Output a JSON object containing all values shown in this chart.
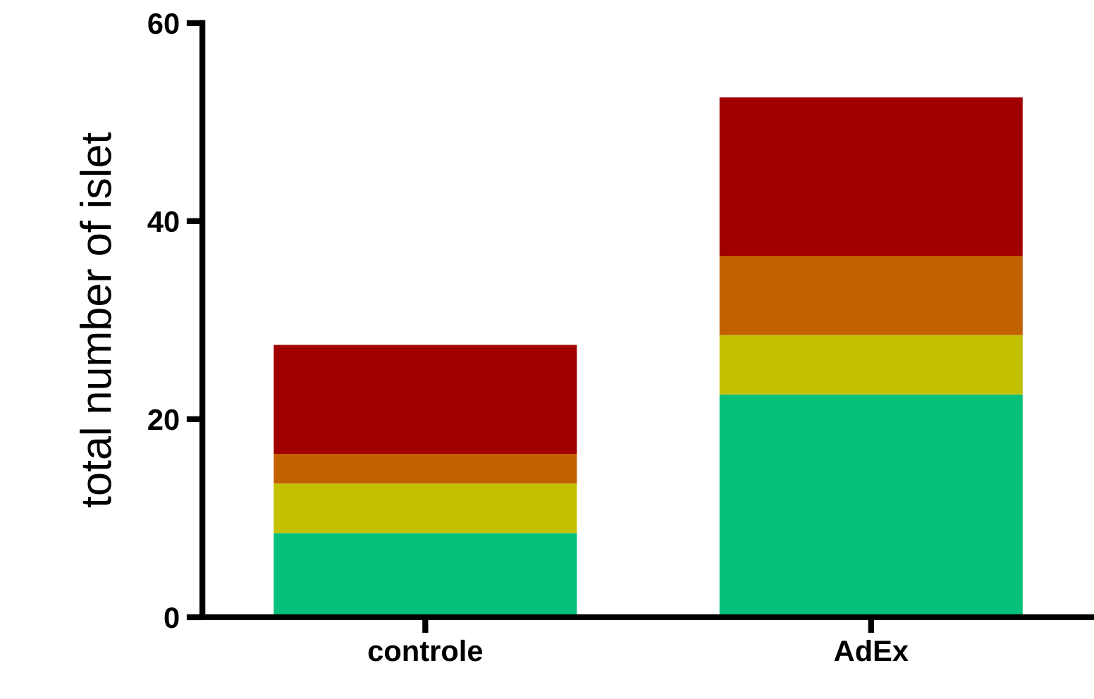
{
  "chart_data": {
    "type": "bar",
    "stacked": true,
    "ylabel": "total number of islet",
    "categories": [
      "controle",
      "AdEx"
    ],
    "series": [
      {
        "color": "#06c179",
        "values": [
          8.5,
          22.5
        ]
      },
      {
        "color": "#c3c000",
        "values": [
          5,
          6
        ]
      },
      {
        "color": "#c26100",
        "values": [
          3,
          8
        ]
      },
      {
        "color": "#a00000",
        "values": [
          11,
          16
        ]
      }
    ],
    "ylim": [
      0,
      60
    ],
    "yticks": [
      0,
      20,
      40,
      60
    ],
    "grid": false,
    "legend": false
  }
}
